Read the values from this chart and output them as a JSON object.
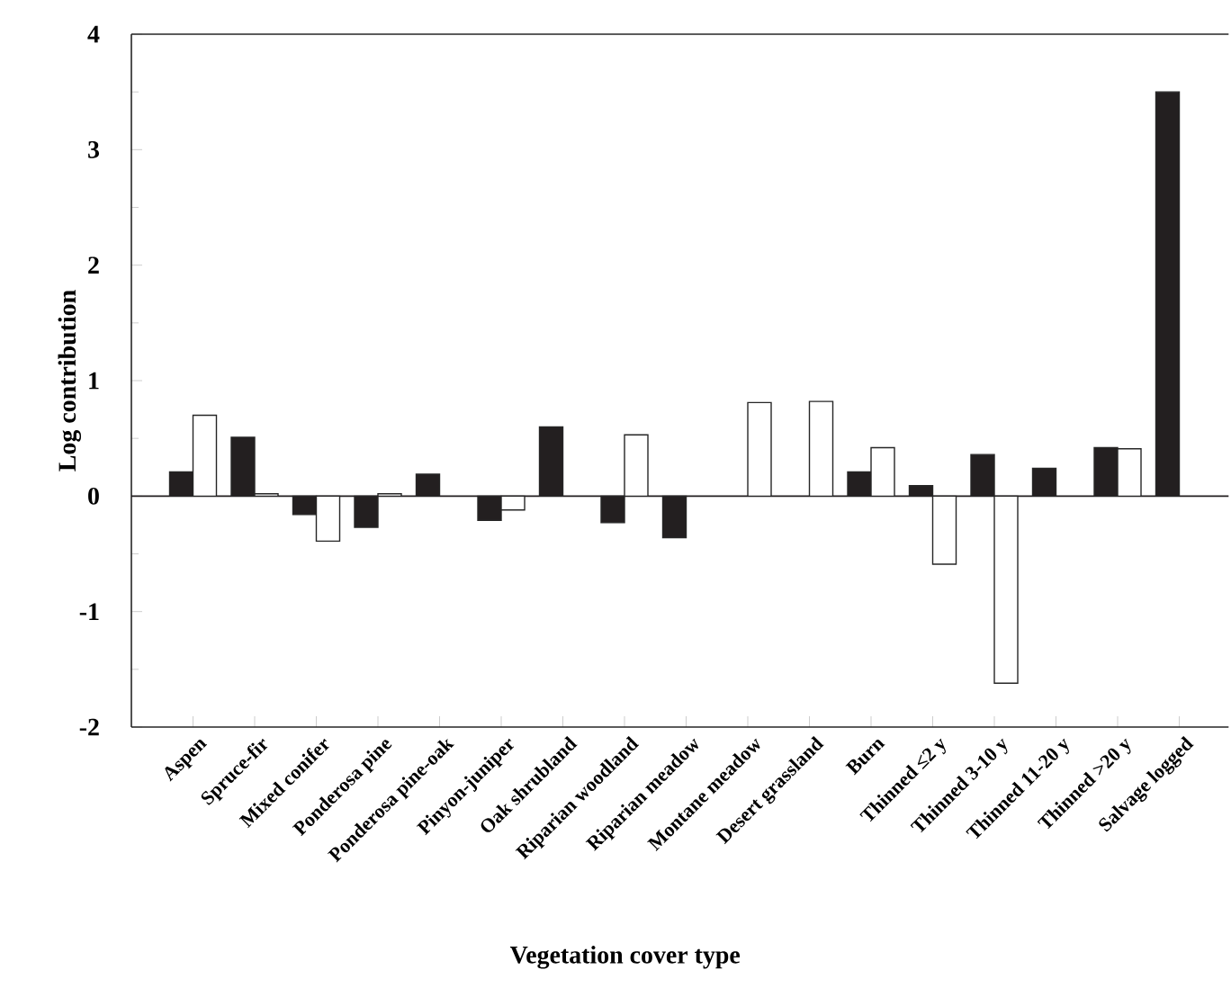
{
  "chart_data": {
    "type": "bar",
    "xlabel": "Vegetation cover type",
    "ylabel": "Log contribution",
    "categories": [
      "Aspen",
      "Spruce-fir",
      "Mixed conifer",
      "Ponderosa pine",
      "Ponderosa pine-oak",
      "Pinyon-juniper",
      "Oak shrubland",
      "Riparian woodland",
      "Riparian meadow",
      "Montane meadow",
      "Desert grassland",
      "Burn",
      "Thinned ≤2 y",
      "Thinned 3-10 y",
      "Thinned 11-20 y",
      "Thinned >20 y",
      "Salvage logged"
    ],
    "series": [
      {
        "color": "#231f20",
        "values": [
          0.21,
          0.51,
          -0.16,
          -0.27,
          0.19,
          -0.21,
          0.6,
          -0.23,
          -0.36,
          null,
          null,
          0.21,
          0.09,
          0.36,
          0.24,
          0.42,
          3.5
        ]
      },
      {
        "color": "#ffffff",
        "values": [
          0.7,
          0.02,
          -0.39,
          0.02,
          null,
          -0.12,
          null,
          0.53,
          null,
          0.81,
          0.82,
          0.42,
          -0.59,
          -1.62,
          null,
          0.41,
          null
        ]
      }
    ],
    "ylim": [
      -2,
      4
    ],
    "yticks": [
      -2,
      -1,
      0,
      1,
      2,
      3,
      4
    ],
    "ref_lines": [
      {
        "axis": "y",
        "value": 0,
        "color": "#231f20"
      }
    ],
    "grid": false
  }
}
